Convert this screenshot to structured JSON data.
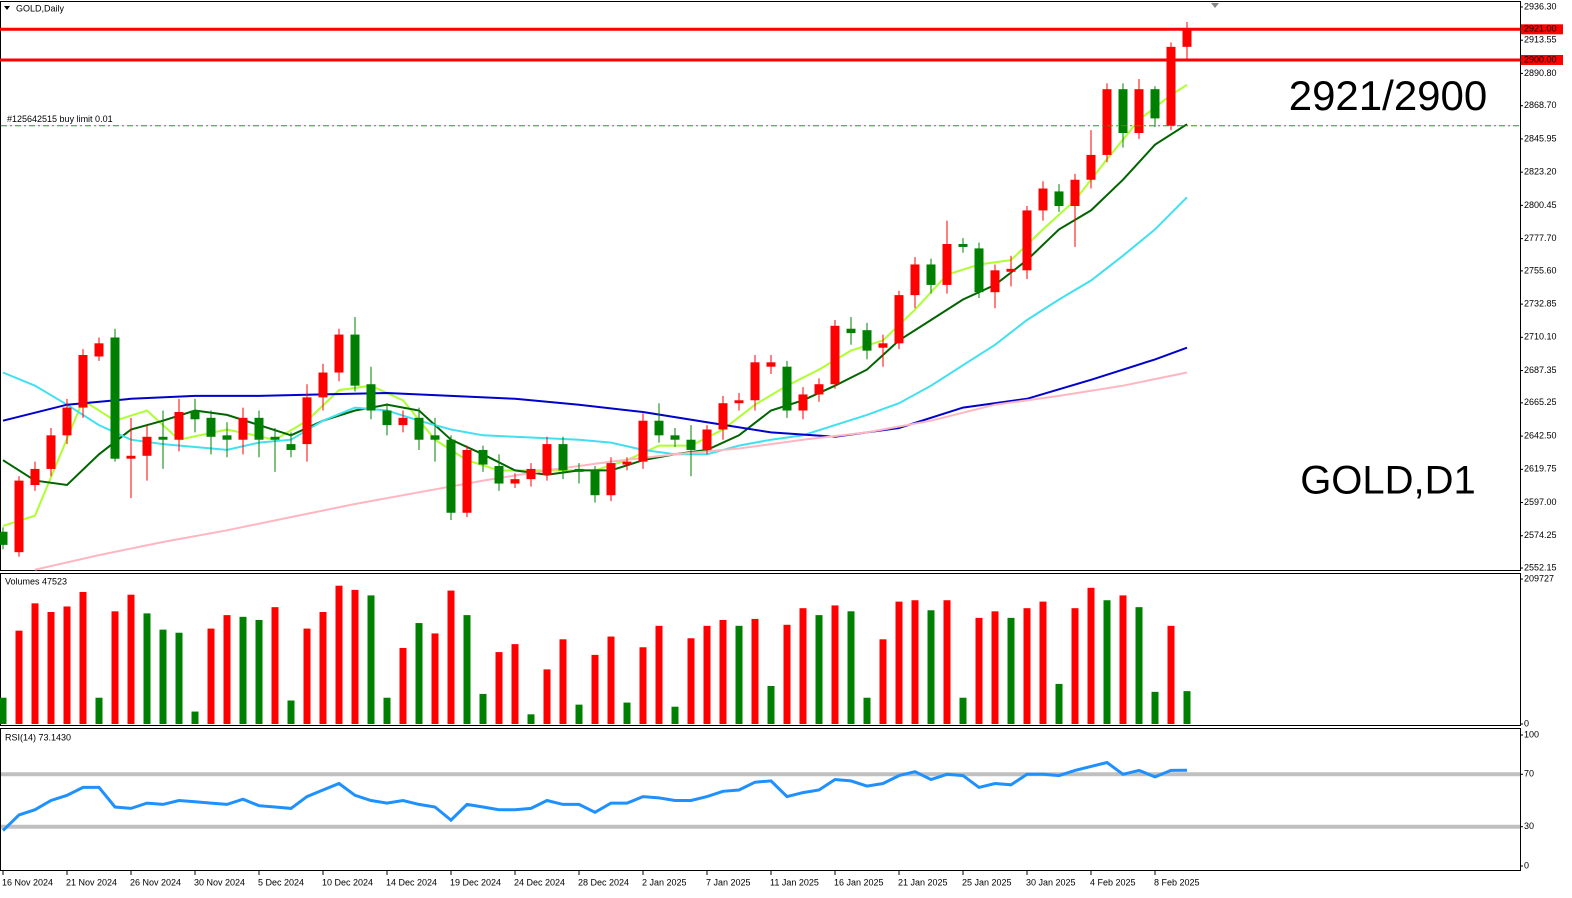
{
  "chart_data": [
    {
      "type": "candlestick",
      "title": "GOLD,Daily",
      "categories": [
        "16 Nov 2024",
        null,
        null,
        null,
        "21 Nov 2024",
        null,
        null,
        null,
        "26 Nov 2024",
        null,
        null,
        null,
        "30 Nov 2024",
        null,
        null,
        null,
        "5 Dec 2024",
        null,
        null,
        null,
        "10 Dec 2024",
        null,
        null,
        null,
        "14 Dec 2024",
        null,
        null,
        null,
        "19 Dec 2024",
        null,
        null,
        null,
        "24 Dec 2024",
        null,
        null,
        null,
        "28 Dec 2024",
        null,
        null,
        null,
        "2 Jan 2025",
        null,
        null,
        null,
        "7 Jan 2025",
        null,
        null,
        null,
        "11 Jan 2025",
        null,
        null,
        null,
        "16 Jan 2025",
        null,
        null,
        null,
        "21 Jan 2025",
        null,
        null,
        null,
        "25 Jan 2025",
        null,
        null,
        null,
        "30 Jan 2025",
        null,
        null,
        null,
        "4 Feb 2025",
        null,
        null,
        null,
        "8 Feb 2025",
        null,
        null
      ],
      "open": [
        2577,
        2563,
        2609,
        2620,
        2643,
        2662,
        2697,
        2710,
        2627,
        2629,
        2642,
        2640,
        2660,
        2655,
        2643,
        2640,
        2655,
        2642,
        2637,
        2637,
        2669,
        2686,
        2712,
        2678,
        2660,
        2650,
        2655,
        2643,
        2640,
        2590,
        2633,
        2622,
        2610,
        2613,
        2616,
        2637,
        2620,
        2619,
        2602,
        2623,
        2625,
        2653,
        2643,
        2640,
        2633,
        2647,
        2665,
        2667,
        2690,
        2690,
        2660,
        2671,
        2678,
        2716,
        2715,
        2703,
        2706,
        2739,
        2760,
        2746,
        2774,
        2771,
        2741,
        2755,
        2756,
        2797,
        2810,
        2800,
        2818,
        2835,
        2880,
        2850,
        2880,
        2855,
        2909
      ],
      "high": [
        2580,
        2615,
        2625,
        2648,
        2668,
        2702,
        2710,
        2716,
        2655,
        2650,
        2660,
        2668,
        2668,
        2660,
        2652,
        2662,
        2660,
        2648,
        2645,
        2678,
        2692,
        2716,
        2724,
        2690,
        2665,
        2660,
        2662,
        2655,
        2643,
        2636,
        2636,
        2630,
        2617,
        2624,
        2642,
        2642,
        2624,
        2622,
        2628,
        2628,
        2658,
        2665,
        2648,
        2650,
        2650,
        2670,
        2672,
        2698,
        2698,
        2694,
        2676,
        2682,
        2722,
        2724,
        2720,
        2712,
        2742,
        2765,
        2764,
        2790,
        2778,
        2775,
        2760,
        2766,
        2800,
        2817,
        2815,
        2822,
        2852,
        2884,
        2884,
        2887,
        2882,
        2912,
        2926
      ],
      "low": [
        2565,
        2560,
        2605,
        2615,
        2637,
        2655,
        2694,
        2625,
        2600,
        2612,
        2620,
        2632,
        2645,
        2630,
        2628,
        2630,
        2628,
        2618,
        2628,
        2625,
        2660,
        2680,
        2673,
        2654,
        2643,
        2645,
        2633,
        2625,
        2585,
        2587,
        2618,
        2605,
        2607,
        2608,
        2612,
        2613,
        2610,
        2597,
        2598,
        2619,
        2620,
        2638,
        2635,
        2615,
        2630,
        2640,
        2660,
        2660,
        2685,
        2655,
        2654,
        2666,
        2675,
        2705,
        2695,
        2690,
        2702,
        2730,
        2740,
        2740,
        2768,
        2737,
        2730,
        2745,
        2750,
        2790,
        2796,
        2772,
        2812,
        2830,
        2840,
        2846,
        2854,
        2852,
        2900
      ],
      "close": [
        2568,
        2612,
        2620,
        2643,
        2662,
        2698,
        2706,
        2627,
        2629,
        2642,
        2640,
        2659,
        2654,
        2642,
        2640,
        2655,
        2640,
        2640,
        2633,
        2669,
        2686,
        2712,
        2677,
        2660,
        2650,
        2655,
        2640,
        2640,
        2590,
        2633,
        2623,
        2610,
        2613,
        2620,
        2637,
        2619,
        2618,
        2602,
        2624,
        2625,
        2653,
        2643,
        2640,
        2633,
        2647,
        2665,
        2667,
        2693,
        2693,
        2660,
        2671,
        2678,
        2718,
        2713,
        2701,
        2706,
        2739,
        2760,
        2746,
        2774,
        2772,
        2741,
        2756,
        2757,
        2797,
        2812,
        2800,
        2818,
        2835,
        2880,
        2850,
        2880,
        2860,
        2909,
        2921
      ],
      "up_color": "#ff0000",
      "down_color": "#008000",
      "ylim": [
        2550.8,
        2939.7
      ],
      "yticks": [
        {
          "value": 2936.3,
          "label": "2936.30"
        },
        {
          "value": 2913.55,
          "label": "2913.55"
        },
        {
          "value": 2890.8,
          "label": "2890.80"
        },
        {
          "value": 2868.7,
          "label": "2868.70"
        },
        {
          "value": 2845.95,
          "label": "2845.95"
        },
        {
          "value": 2823.2,
          "label": "2823.20"
        },
        {
          "value": 2800.45,
          "label": "2800.45"
        },
        {
          "value": 2777.7,
          "label": "2777.70"
        },
        {
          "value": 2755.6,
          "label": "2755.60"
        },
        {
          "value": 2732.85,
          "label": "2732.85"
        },
        {
          "value": 2710.1,
          "label": "2710.10"
        },
        {
          "value": 2687.35,
          "label": "2687.35"
        },
        {
          "value": 2665.25,
          "label": "2665.25"
        },
        {
          "value": 2642.5,
          "label": "2642.50"
        },
        {
          "value": 2619.75,
          "label": "2619.75"
        },
        {
          "value": 2597,
          "label": "2597.00"
        },
        {
          "value": 2574.25,
          "label": "2574.25"
        },
        {
          "value": 2552.15,
          "label": "2552.15"
        }
      ],
      "series": [
        {
          "color": "#adff2f",
          "x": [
            0,
            2,
            5,
            7,
            9,
            11,
            14,
            17,
            19,
            21,
            23,
            25,
            27,
            29,
            31,
            33,
            35,
            37,
            39,
            41,
            43,
            45,
            47,
            49,
            51,
            53,
            55,
            57,
            59,
            61,
            63,
            65,
            67,
            69,
            71,
            73,
            74
          ],
          "values": [
            2581,
            2588,
            2667,
            2653,
            2660,
            2640,
            2647,
            2640,
            2653,
            2674,
            2677,
            2667,
            2640,
            2626,
            2619,
            2619,
            2619,
            2619,
            2626,
            2636,
            2636,
            2647,
            2664,
            2677,
            2688,
            2701,
            2708,
            2729,
            2753,
            2760,
            2763,
            2784,
            2804,
            2832,
            2859,
            2876,
            2883
          ]
        },
        {
          "color": "#006400",
          "x": [
            0,
            2,
            4,
            6,
            8,
            10,
            12,
            14,
            16,
            18,
            20,
            22,
            24,
            26,
            28,
            30,
            32,
            34,
            36,
            38,
            40,
            42,
            44,
            46,
            48,
            50,
            52,
            54,
            56,
            58,
            60,
            62,
            64,
            66,
            68,
            70,
            72,
            74
          ],
          "values": [
            2626,
            2612,
            2609,
            2630,
            2647,
            2653,
            2660,
            2657,
            2650,
            2643,
            2653,
            2660,
            2664,
            2660,
            2640,
            2630,
            2619,
            2616,
            2619,
            2619,
            2626,
            2630,
            2633,
            2643,
            2660,
            2667,
            2677,
            2688,
            2708,
            2722,
            2736,
            2746,
            2763,
            2784,
            2797,
            2818,
            2842,
            2856
          ]
        },
        {
          "color": "#40e0f0",
          "x": [
            0,
            2,
            4,
            6,
            8,
            10,
            12,
            14,
            16,
            18,
            20,
            22,
            24,
            26,
            28,
            30,
            32,
            34,
            36,
            38,
            40,
            42,
            44,
            46,
            48,
            50,
            52,
            54,
            56,
            58,
            60,
            62,
            64,
            66,
            68,
            70,
            72,
            74
          ],
          "values": [
            2686,
            2677,
            2664,
            2650,
            2640,
            2637,
            2635,
            2633,
            2638,
            2640,
            2653,
            2662,
            2660,
            2653,
            2647,
            2643,
            2642,
            2641,
            2640,
            2638,
            2633,
            2630,
            2630,
            2636,
            2640,
            2643,
            2650,
            2657,
            2665,
            2677,
            2691,
            2705,
            2722,
            2736,
            2749,
            2766,
            2784,
            2806
          ]
        },
        {
          "color": "#0000cd",
          "x": [
            0,
            4,
            8,
            12,
            16,
            20,
            24,
            28,
            32,
            36,
            40,
            44,
            48,
            52,
            56,
            60,
            64,
            68,
            72,
            74
          ],
          "values": [
            2653,
            2664,
            2668,
            2670,
            2670,
            2671,
            2672,
            2670,
            2668,
            2664,
            2659,
            2652,
            2645,
            2642,
            2648,
            2662,
            2668,
            2681,
            2695,
            2703
          ]
        },
        {
          "color": "#ffb6c1",
          "x": [
            2,
            6,
            10,
            14,
            18,
            22,
            26,
            30,
            34,
            38,
            42,
            46,
            50,
            54,
            58,
            62,
            66,
            70,
            74
          ],
          "values": [
            2551,
            2561,
            2570,
            2578,
            2587,
            2596,
            2604,
            2612,
            2619,
            2625,
            2630,
            2634,
            2640,
            2645,
            2653,
            2664,
            2670,
            2677,
            2686
          ]
        }
      ],
      "hlines": [
        {
          "value": 2921,
          "label": "2921.00",
          "color": "#ff0000"
        },
        {
          "value": 2900,
          "label": "2900.00",
          "color": "#ff0000"
        }
      ],
      "order": {
        "label": "#125642515 buy limit 0.01",
        "value": 2855,
        "color": "#00b000"
      },
      "annotations": [
        "2921/2900",
        "GOLD,D1"
      ]
    },
    {
      "type": "bar",
      "title": "Volumes 47523",
      "values": [
        38000,
        135000,
        174500,
        162000,
        170000,
        191000,
        38000,
        163000,
        187000,
        160000,
        136500,
        132000,
        18000,
        138000,
        157500,
        155000,
        150500,
        169000,
        34000,
        138000,
        162000,
        200000,
        194000,
        186000,
        38000,
        110000,
        146000,
        131000,
        193000,
        157500,
        43500,
        104000,
        115500,
        14000,
        79000,
        122500,
        28000,
        100000,
        126500,
        31000,
        111000,
        142000,
        25000,
        124000,
        142000,
        150500,
        142000,
        152000,
        55000,
        143500,
        167500,
        157500,
        171500,
        163000,
        38000,
        122500,
        177000,
        179000,
        164500,
        179000,
        38000,
        153500,
        163000,
        153500,
        167500,
        177000,
        58000,
        167500,
        197000,
        179000,
        186000,
        169000,
        46500,
        142000,
        47523
      ],
      "colors": [
        "#008000",
        "#ff0000",
        "#ff0000",
        "#ff0000",
        "#ff0000",
        "#ff0000",
        "#008000",
        "#ff0000",
        "#ff0000",
        "#008000",
        "#008000",
        "#008000",
        "#008000",
        "#ff0000",
        "#ff0000",
        "#008000",
        "#008000",
        "#ff0000",
        "#008000",
        "#ff0000",
        "#ff0000",
        "#ff0000",
        "#ff0000",
        "#008000",
        "#008000",
        "#ff0000",
        "#008000",
        "#ff0000",
        "#ff0000",
        "#008000",
        "#008000",
        "#ff0000",
        "#ff0000",
        "#008000",
        "#ff0000",
        "#ff0000",
        "#008000",
        "#ff0000",
        "#ff0000",
        "#008000",
        "#ff0000",
        "#ff0000",
        "#008000",
        "#ff0000",
        "#ff0000",
        "#ff0000",
        "#008000",
        "#ff0000",
        "#008000",
        "#ff0000",
        "#ff0000",
        "#008000",
        "#ff0000",
        "#008000",
        "#008000",
        "#ff0000",
        "#ff0000",
        "#ff0000",
        "#008000",
        "#ff0000",
        "#008000",
        "#ff0000",
        "#ff0000",
        "#008000",
        "#ff0000",
        "#ff0000",
        "#008000",
        "#ff0000",
        "#ff0000",
        "#008000",
        "#ff0000",
        "#008000",
        "#008000",
        "#ff0000",
        "#008000"
      ],
      "ylim": [
        0,
        209727
      ],
      "yticks": [
        209727,
        0
      ]
    },
    {
      "type": "line",
      "title": "RSI(14) 73.1430",
      "color": "#1e90ff",
      "values": [
        27,
        39,
        43,
        50,
        54,
        60,
        60,
        45,
        44,
        48,
        47,
        50,
        49,
        48,
        47,
        51,
        46,
        45,
        44,
        53,
        58,
        63,
        54,
        50,
        48,
        50,
        47,
        45,
        35,
        47,
        45,
        43,
        43,
        44,
        50,
        47,
        47,
        41,
        48,
        48,
        53,
        52,
        50,
        50,
        53,
        57,
        58,
        64,
        65,
        53,
        56,
        58,
        66,
        65,
        61,
        63,
        69,
        72,
        66,
        70,
        69,
        60,
        63,
        62,
        70,
        70,
        69,
        73,
        76,
        79,
        70,
        73,
        68,
        73,
        73.143
      ],
      "ylim": [
        0,
        100
      ],
      "yticks": [
        100,
        70,
        30,
        0
      ],
      "levels": [
        70,
        30
      ]
    }
  ]
}
